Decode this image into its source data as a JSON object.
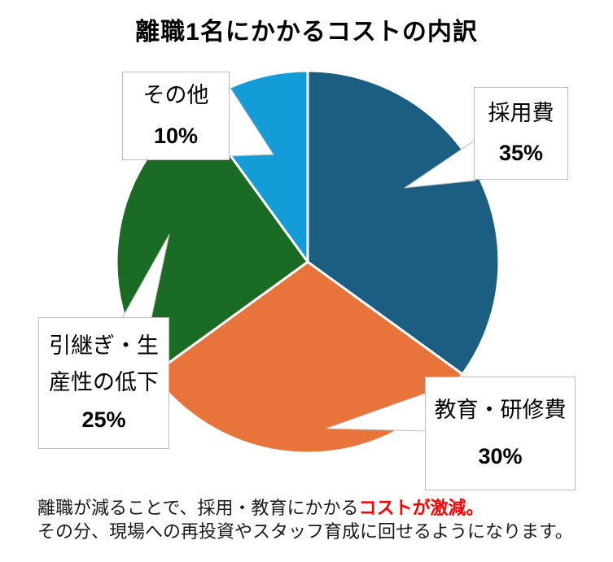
{
  "title": "離職1名にかかるコストの内訳",
  "chart_data": {
    "type": "pie",
    "title": "離職1名にかかるコストの内訳",
    "unit": "%",
    "start_angle_deg": 0,
    "direction": "clockwise",
    "slices": [
      {
        "label": "採用費",
        "value": 35,
        "pct_label": "35%",
        "color": "#1C5E82"
      },
      {
        "label": "教育・研修費",
        "value": 30,
        "pct_label": "30%",
        "color": "#E8743B"
      },
      {
        "label": "引継ぎ・生産性の低下",
        "value": 25,
        "pct_label": "25%",
        "color": "#1A6B24"
      },
      {
        "label": "その他",
        "value": 10,
        "pct_label": "10%",
        "color": "#149CD8"
      }
    ],
    "separator_color": "#FFFFFF",
    "callout_border_color": "#BDBDBD"
  },
  "footer": {
    "line1_normal": "離職が減ることで、採用・教育にかかる",
    "line1_highlight": "コストが激減。",
    "line2": "その分、現場への再投資やスタッフ育成に回せるようになります。",
    "highlight_color": "#FF0000"
  }
}
